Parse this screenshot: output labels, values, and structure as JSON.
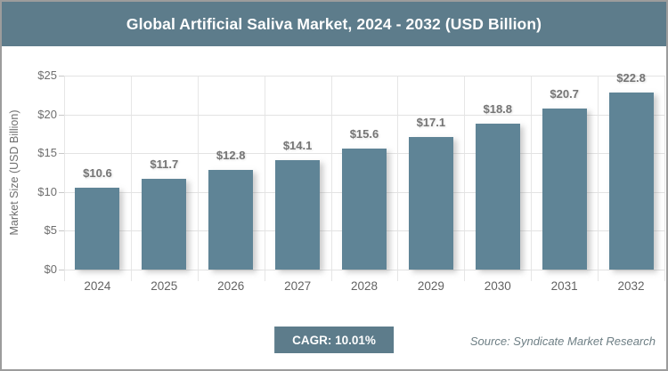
{
  "header": {
    "title": "Global Artificial Saliva Market, 2024 - 2032 (USD Billion)"
  },
  "chart_data": {
    "type": "bar",
    "title": "Global Artificial Saliva Market, 2024 - 2032 (USD Billion)",
    "categories": [
      "2024",
      "2025",
      "2026",
      "2027",
      "2028",
      "2029",
      "2030",
      "2031",
      "2032"
    ],
    "values": [
      10.6,
      11.7,
      12.8,
      14.1,
      15.6,
      17.1,
      18.8,
      20.7,
      22.8
    ],
    "value_labels": [
      "$10.6",
      "$11.7",
      "$12.8",
      "$14.1",
      "$15.6",
      "$17.1",
      "$18.8",
      "$20.7",
      "$22.8"
    ],
    "xlabel": "",
    "ylabel": "Market Size (USD Billion)",
    "ylim": [
      0,
      25
    ],
    "y_ticks": [
      "$0",
      "$5",
      "$10",
      "$15",
      "$20",
      "$25"
    ],
    "grid": true,
    "legend": "none"
  },
  "footer": {
    "cagr_label": "CAGR: 10.01%",
    "source": "Source: Syndicate Market Research"
  },
  "colors": {
    "header_bg": "#5d7c8b",
    "bar_fill": "#5f8496",
    "badge_bg": "#5d7c8b",
    "gridline": "#e3e3e3",
    "frame_border": "#9c9c9c",
    "label_text": "#757575",
    "source_text": "#6e7f85"
  }
}
